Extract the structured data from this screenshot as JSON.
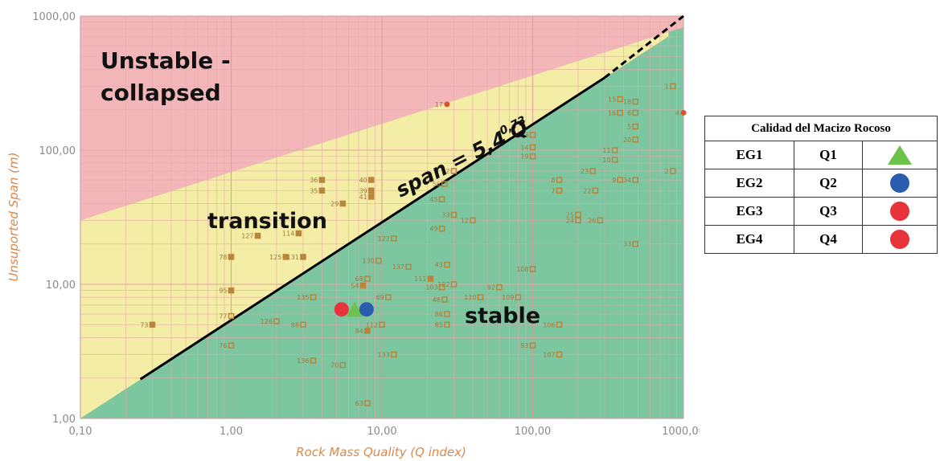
{
  "chart_data": {
    "type": "scatter",
    "x_scale": "log",
    "y_scale": "log",
    "xlim": [
      0.1,
      1000
    ],
    "ylim": [
      1,
      1000
    ],
    "xlabel": "Rock Mass Quality (Q index)",
    "ylabel": "Unsuported Span (m)",
    "x_ticks": [
      "0,10",
      "1,00",
      "10,00",
      "100,00",
      "1000,00"
    ],
    "y_ticks": [
      "1,00",
      "10,00",
      "100,00",
      "1000,00"
    ],
    "grid": true,
    "zones": [
      {
        "name": "Unstable -",
        "name2": "collapsed",
        "color": "#f4b7b9"
      },
      {
        "name": "transition",
        "color": "#f3eda6"
      },
      {
        "name": "stable",
        "color": "#7cc6a0"
      }
    ],
    "fit_line": {
      "label": "span = 5,4 Q",
      "exponent": "0,73",
      "coef": 5.4,
      "power": 0.73,
      "x_range": [
        0.25,
        1000
      ]
    },
    "points": [
      {
        "label": "73",
        "x": 0.3,
        "y": 5,
        "fill": true
      },
      {
        "label": "127",
        "x": 1.5,
        "y": 23,
        "fill": true
      },
      {
        "label": "114",
        "x": 2.8,
        "y": 24,
        "fill": true
      },
      {
        "label": "78",
        "x": 1,
        "y": 16,
        "fill": true
      },
      {
        "label": "95",
        "x": 1,
        "y": 9,
        "fill": true
      },
      {
        "label": "77",
        "x": 1,
        "y": 5.8,
        "fill": false
      },
      {
        "label": "76",
        "x": 1,
        "y": 3.5,
        "fill": false
      },
      {
        "label": "125",
        "x": 2.3,
        "y": 16,
        "fill": true
      },
      {
        "label": "131",
        "x": 3,
        "y": 16,
        "fill": true
      },
      {
        "label": "126",
        "x": 2,
        "y": 5.3,
        "fill": false
      },
      {
        "label": "136",
        "x": 3.5,
        "y": 2.7,
        "fill": false
      },
      {
        "label": "36",
        "x": 4,
        "y": 60,
        "fill": true
      },
      {
        "label": "35",
        "x": 4,
        "y": 50,
        "fill": true
      },
      {
        "label": "29",
        "x": 5.5,
        "y": 40,
        "fill": true
      },
      {
        "label": "40",
        "x": 8.5,
        "y": 60,
        "fill": true
      },
      {
        "label": "39",
        "x": 8.5,
        "y": 50,
        "fill": true
      },
      {
        "label": "41",
        "x": 8.5,
        "y": 45,
        "fill": true
      },
      {
        "label": "17",
        "x": 27,
        "y": 220,
        "fill": true
      },
      {
        "label": "56",
        "x": 26,
        "y": 56,
        "fill": false
      },
      {
        "label": "45",
        "x": 25,
        "y": 43,
        "fill": false
      },
      {
        "label": "33",
        "x": 30,
        "y": 33,
        "fill": false
      },
      {
        "label": "49",
        "x": 25,
        "y": 26,
        "fill": false
      },
      {
        "label": "43",
        "x": 27,
        "y": 14,
        "fill": false
      },
      {
        "label": "102",
        "x": 30,
        "y": 10,
        "fill": false
      },
      {
        "label": "103",
        "x": 25,
        "y": 9.5,
        "fill": false
      },
      {
        "label": "48",
        "x": 26,
        "y": 7.7,
        "fill": false
      },
      {
        "label": "86",
        "x": 27,
        "y": 6,
        "fill": false
      },
      {
        "label": "85",
        "x": 27,
        "y": 5,
        "fill": false
      },
      {
        "label": "130",
        "x": 9.5,
        "y": 15,
        "fill": false
      },
      {
        "label": "122",
        "x": 12,
        "y": 22,
        "fill": false
      },
      {
        "label": "137",
        "x": 15,
        "y": 13.5,
        "fill": false
      },
      {
        "label": "111",
        "x": 21,
        "y": 11,
        "fill": true
      },
      {
        "label": "68",
        "x": 8,
        "y": 11,
        "fill": false
      },
      {
        "label": "54",
        "x": 7.5,
        "y": 9.8,
        "fill": true
      },
      {
        "label": "69",
        "x": 11,
        "y": 8,
        "fill": false
      },
      {
        "label": "112",
        "x": 10,
        "y": 5,
        "fill": false
      },
      {
        "label": "94",
        "x": 8,
        "y": 4.5,
        "fill": true
      },
      {
        "label": "133",
        "x": 12,
        "y": 3,
        "fill": false
      },
      {
        "label": "70",
        "x": 5.5,
        "y": 2.5,
        "fill": false
      },
      {
        "label": "63",
        "x": 8,
        "y": 1.3,
        "fill": false
      },
      {
        "label": "135",
        "x": 3.5,
        "y": 8,
        "fill": false
      },
      {
        "label": "88",
        "x": 3,
        "y": 5,
        "fill": false
      },
      {
        "label": "110",
        "x": 45,
        "y": 8,
        "fill": false
      },
      {
        "label": "92",
        "x": 60,
        "y": 9.5,
        "fill": false
      },
      {
        "label": "108",
        "x": 100,
        "y": 13,
        "fill": false
      },
      {
        "label": "109",
        "x": 80,
        "y": 8,
        "fill": false
      },
      {
        "label": "93",
        "x": 100,
        "y": 3.5,
        "fill": false
      },
      {
        "label": "106",
        "x": 150,
        "y": 5,
        "fill": false
      },
      {
        "label": "107",
        "x": 150,
        "y": 3,
        "fill": false
      },
      {
        "label": "12",
        "x": 40,
        "y": 30,
        "fill": false
      },
      {
        "label": "32",
        "x": 30,
        "y": 70,
        "fill": false
      },
      {
        "label": "13",
        "x": 100,
        "y": 130,
        "fill": false
      },
      {
        "label": "14",
        "x": 100,
        "y": 105,
        "fill": false
      },
      {
        "label": "19",
        "x": 100,
        "y": 90,
        "fill": false
      },
      {
        "label": "8",
        "x": 150,
        "y": 60,
        "fill": false
      },
      {
        "label": "7",
        "x": 150,
        "y": 50,
        "fill": false
      },
      {
        "label": "25",
        "x": 200,
        "y": 33,
        "fill": false
      },
      {
        "label": "24",
        "x": 200,
        "y": 30,
        "fill": false
      },
      {
        "label": "26",
        "x": 280,
        "y": 30,
        "fill": false
      },
      {
        "label": "23",
        "x": 250,
        "y": 70,
        "fill": false
      },
      {
        "label": "22",
        "x": 260,
        "y": 50,
        "fill": false
      },
      {
        "label": "15",
        "x": 380,
        "y": 240,
        "fill": false
      },
      {
        "label": "18",
        "x": 480,
        "y": 230,
        "fill": false
      },
      {
        "label": "16",
        "x": 380,
        "y": 190,
        "fill": false
      },
      {
        "label": "6",
        "x": 480,
        "y": 190,
        "fill": false
      },
      {
        "label": "5",
        "x": 480,
        "y": 150,
        "fill": false
      },
      {
        "label": "20",
        "x": 480,
        "y": 120,
        "fill": false
      },
      {
        "label": "11",
        "x": 350,
        "y": 100,
        "fill": false
      },
      {
        "label": "10",
        "x": 350,
        "y": 85,
        "fill": false
      },
      {
        "label": "9",
        "x": 380,
        "y": 60,
        "fill": false
      },
      {
        "label": "34",
        "x": 480,
        "y": 60,
        "fill": false
      },
      {
        "label": "33",
        "x": 480,
        "y": 20,
        "fill": false
      },
      {
        "label": "1",
        "x": 850,
        "y": 300,
        "fill": false
      },
      {
        "label": "4",
        "x": 1000,
        "y": 190,
        "fill": true
      },
      {
        "label": "2",
        "x": 850,
        "y": 70,
        "fill": false
      }
    ],
    "highlight": [
      {
        "label": "EG1",
        "x": 6.6,
        "y": 6.5,
        "color": "#6cc24a",
        "shape": "triangle"
      },
      {
        "label": "EG2",
        "x": 7.9,
        "y": 6.5,
        "color": "#2a5db0",
        "shape": "circle"
      },
      {
        "label": "EG3",
        "x": 5.4,
        "y": 6.5,
        "color": "#e8333a",
        "shape": "circle"
      }
    ],
    "colors": {
      "unstable": "#f4b7b9",
      "transition": "#f3eda6",
      "stable": "#7cc6a0",
      "point": "#b8863b"
    }
  },
  "legend": {
    "title": "Calidad del Macizo Rocoso",
    "rows": [
      {
        "eg": "EG1",
        "q": "Q1",
        "color": "#6cc24a",
        "shape": "triangle"
      },
      {
        "eg": "EG2",
        "q": "Q2",
        "color": "#2a5db0",
        "shape": "circle"
      },
      {
        "eg": "EG3",
        "q": "Q3",
        "color": "#e8333a",
        "shape": "circle"
      },
      {
        "eg": "EG4",
        "q": "Q4",
        "color": "#e8333a",
        "shape": "circle"
      }
    ]
  }
}
